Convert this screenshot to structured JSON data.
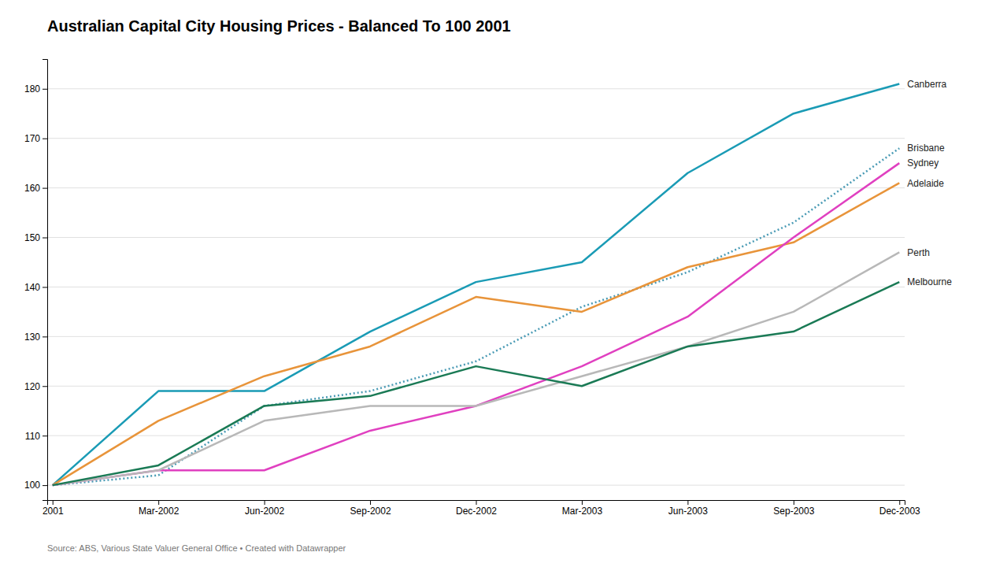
{
  "chart_data": {
    "type": "line",
    "title": "Australian Capital City Housing Prices - Balanced To 100 2001",
    "source": "Source: ABS, Various State Valuer General Office • Created with Datawrapper",
    "categories": [
      "2001",
      "Mar-2002",
      "Jun-2002",
      "Sep-2002",
      "Dec-2002",
      "Mar-2003",
      "Jun-2003",
      "Sep-2003",
      "Dec-2003"
    ],
    "series": [
      {
        "name": "Canberra",
        "color": "#1a9bb5",
        "line_style": "solid",
        "values": [
          100,
          119,
          119,
          131,
          141,
          145,
          163,
          175,
          181
        ]
      },
      {
        "name": "Brisbane",
        "color": "#4a9bb5",
        "line_style": "dotted",
        "values": [
          100,
          102,
          116,
          119,
          125,
          136,
          143,
          153,
          168
        ]
      },
      {
        "name": "Adelaide",
        "color": "#e8943a",
        "line_style": "solid",
        "values": [
          100,
          113,
          122,
          128,
          138,
          135,
          144,
          149,
          161
        ]
      },
      {
        "name": "Sydney",
        "color": "#e040c0",
        "line_style": "solid",
        "values": [
          100,
          103,
          103,
          111,
          116,
          124,
          134,
          150,
          165
        ]
      },
      {
        "name": "Perth",
        "color": "#b8b8b8",
        "line_style": "solid",
        "values": [
          100,
          103,
          113,
          116,
          116,
          122,
          128,
          135,
          147
        ]
      },
      {
        "name": "Melbourne",
        "color": "#1a7a55",
        "line_style": "solid",
        "values": [
          100,
          104,
          116,
          118,
          124,
          120,
          128,
          131,
          141
        ]
      }
    ],
    "ylim": [
      97,
      186
    ],
    "yticks": [
      100,
      110,
      120,
      130,
      140,
      150,
      160,
      170,
      180
    ],
    "grid": true
  }
}
